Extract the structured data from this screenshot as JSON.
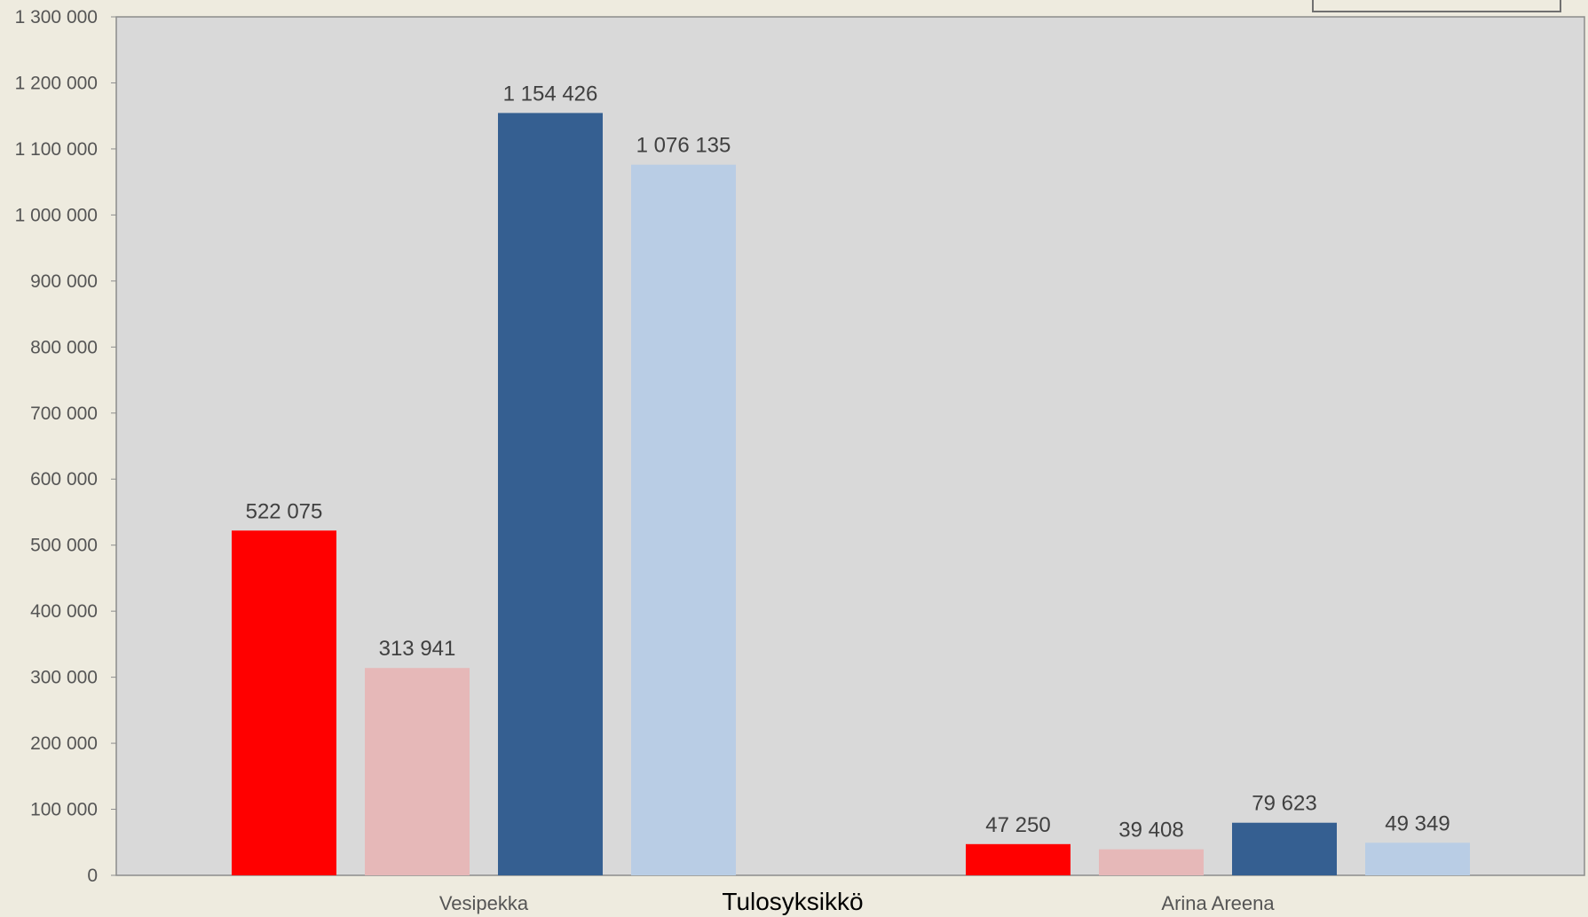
{
  "chart_data": {
    "type": "bar",
    "xlabel": "Tulosyksikkö",
    "ylabel": "",
    "ylim": [
      0,
      1300000
    ],
    "yticks": [
      0,
      100000,
      200000,
      300000,
      400000,
      500000,
      600000,
      700000,
      800000,
      900000,
      1000000,
      1100000,
      1200000,
      1300000
    ],
    "ytick_labels": [
      "0",
      "100 000",
      "200 000",
      "300 000",
      "400 000",
      "500 000",
      "600 000",
      "700 000",
      "800 000",
      "900 000",
      "1 000 000",
      "1 100 000",
      "1 200 000",
      "1 300 000"
    ],
    "categories": [
      "Vesipekka",
      "Arina Areena"
    ],
    "series": [
      {
        "values": [
          522075,
          47250
        ],
        "labels": [
          "522 075",
          "47 250"
        ],
        "color": "#ff0000"
      },
      {
        "values": [
          313941,
          39408
        ],
        "labels": [
          "313 941",
          "39 408"
        ],
        "color": "#e6b8b8"
      },
      {
        "values": [
          1154426,
          79623
        ],
        "labels": [
          "1 154 426",
          "79 623"
        ],
        "color": "#355f91"
      },
      {
        "values": [
          1076135,
          49349
        ],
        "labels": [
          "1 076 135",
          "49 349"
        ],
        "color": "#b9cde5"
      }
    ],
    "grid": false,
    "legend": "top-right",
    "plot_background": "#d9d9d9",
    "page_background": "#eeebdf"
  }
}
